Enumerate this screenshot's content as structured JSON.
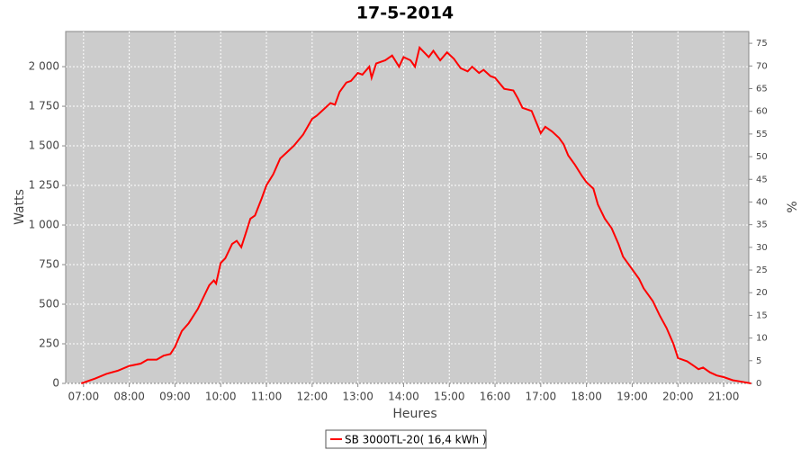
{
  "chart_data": {
    "type": "line",
    "title": "17-5-2014",
    "x_label": "Heures",
    "y_label": "Watts",
    "y2_label": "%",
    "x": [
      6.95,
      7.25,
      7.5,
      7.75,
      8.0,
      8.25,
      8.4,
      8.6,
      8.75,
      8.9,
      9.0,
      9.15,
      9.3,
      9.5,
      9.65,
      9.75,
      9.85,
      9.9,
      10.0,
      10.1,
      10.25,
      10.35,
      10.45,
      10.55,
      10.65,
      10.75,
      10.9,
      11.0,
      11.15,
      11.3,
      11.45,
      11.6,
      11.8,
      12.0,
      12.1,
      12.25,
      12.4,
      12.5,
      12.6,
      12.75,
      12.85,
      13.0,
      13.1,
      13.25,
      13.3,
      13.4,
      13.6,
      13.75,
      13.9,
      14.0,
      14.15,
      14.25,
      14.35,
      14.45,
      14.55,
      14.65,
      14.8,
      14.95,
      15.1,
      15.25,
      15.4,
      15.5,
      15.65,
      15.75,
      15.9,
      16.0,
      16.2,
      16.4,
      16.5,
      16.6,
      16.8,
      17.0,
      17.1,
      17.25,
      17.4,
      17.5,
      17.6,
      17.75,
      17.9,
      18.0,
      18.15,
      18.25,
      18.4,
      18.55,
      18.7,
      18.8,
      19.0,
      19.15,
      19.25,
      19.45,
      19.6,
      19.75,
      19.9,
      20.0,
      20.2,
      20.35,
      20.45,
      20.55,
      20.7,
      20.85,
      21.0,
      21.2,
      21.4,
      21.6
    ],
    "series": [
      {
        "name": "SB 3000TL-20( 16,4 kWh )",
        "color": "#ff0000",
        "values": [
          0,
          30,
          60,
          80,
          110,
          125,
          150,
          150,
          175,
          185,
          230,
          330,
          380,
          470,
          560,
          620,
          650,
          630,
          760,
          790,
          880,
          900,
          860,
          950,
          1040,
          1060,
          1170,
          1250,
          1320,
          1420,
          1460,
          1500,
          1570,
          1670,
          1690,
          1730,
          1770,
          1760,
          1840,
          1900,
          1910,
          1960,
          1950,
          2000,
          1930,
          2020,
          2040,
          2070,
          2000,
          2060,
          2040,
          2000,
          2120,
          2090,
          2060,
          2100,
          2040,
          2090,
          2050,
          1990,
          1970,
          2000,
          1960,
          1980,
          1940,
          1930,
          1860,
          1850,
          1800,
          1740,
          1720,
          1580,
          1620,
          1590,
          1550,
          1510,
          1440,
          1380,
          1310,
          1270,
          1230,
          1130,
          1040,
          980,
          880,
          800,
          720,
          660,
          600,
          520,
          430,
          350,
          250,
          160,
          140,
          110,
          90,
          100,
          70,
          50,
          40,
          20,
          10,
          0
        ]
      }
    ],
    "xlim": [
      6.61,
      21.55
    ],
    "xticks": [
      {
        "value": 7,
        "label": "07:00"
      },
      {
        "value": 8,
        "label": "08:00"
      },
      {
        "value": 9,
        "label": "09:00"
      },
      {
        "value": 10,
        "label": "10:00"
      },
      {
        "value": 11,
        "label": "11:00"
      },
      {
        "value": 12,
        "label": "12:00"
      },
      {
        "value": 13,
        "label": "13:00"
      },
      {
        "value": 14,
        "label": "14:00"
      },
      {
        "value": 15,
        "label": "15:00"
      },
      {
        "value": 16,
        "label": "16:00"
      },
      {
        "value": 17,
        "label": "17:00"
      },
      {
        "value": 18,
        "label": "18:00"
      },
      {
        "value": 19,
        "label": "19:00"
      },
      {
        "value": 20,
        "label": "20:00"
      },
      {
        "value": 21,
        "label": "21:00"
      }
    ],
    "ylim": [
      0,
      2222
    ],
    "yticks": [
      0,
      250,
      500,
      750,
      {
        "value": 1000,
        "label": "1 000"
      },
      {
        "value": 1250,
        "label": "1 250"
      },
      {
        "value": 1500,
        "label": "1 500"
      },
      {
        "value": 1750,
        "label": "1 750"
      },
      {
        "value": 2000,
        "label": "2 000"
      }
    ],
    "y2lim": [
      0,
      77.6
    ],
    "y2ticks": [
      0,
      5,
      10,
      15,
      20,
      25,
      30,
      35,
      40,
      45,
      50,
      55,
      60,
      65,
      70,
      75
    ],
    "grid": true,
    "legend": "bottom"
  }
}
